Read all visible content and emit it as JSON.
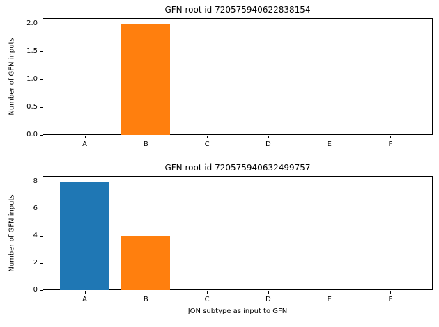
{
  "figure": {
    "background": "#ffffff"
  },
  "chart_data": [
    {
      "type": "bar",
      "title": "GFN root id 720575940622838154",
      "ylabel": "Number of GFN inputs",
      "xlabel": "",
      "categories": [
        "A",
        "B",
        "C",
        "D",
        "E",
        "F"
      ],
      "values": [
        0,
        2,
        0,
        0,
        0,
        0
      ],
      "bar_colors": [
        null,
        "#ff7f0e",
        null,
        null,
        null,
        null
      ],
      "yticks": [
        0.0,
        0.5,
        1.0,
        1.5,
        2.0
      ],
      "ytick_labels": [
        "0.0",
        "0.5",
        "1.0",
        "1.5",
        "2.0"
      ],
      "ylim": [
        0,
        2.1
      ],
      "grid": false,
      "legend": null
    },
    {
      "type": "bar",
      "title": "GFN root id 720575940632499757",
      "ylabel": "Number of GFN inputs",
      "xlabel": "JON subtype as input to GFN",
      "categories": [
        "A",
        "B",
        "C",
        "D",
        "E",
        "F"
      ],
      "values": [
        8,
        4,
        0,
        0,
        0,
        0
      ],
      "bar_colors": [
        "#1f77b4",
        "#ff7f0e",
        null,
        null,
        null,
        null
      ],
      "yticks": [
        0,
        2,
        4,
        6,
        8
      ],
      "ytick_labels": [
        "0",
        "2",
        "4",
        "6",
        "8"
      ],
      "ylim": [
        0,
        8.4
      ],
      "grid": false,
      "legend": null
    }
  ]
}
